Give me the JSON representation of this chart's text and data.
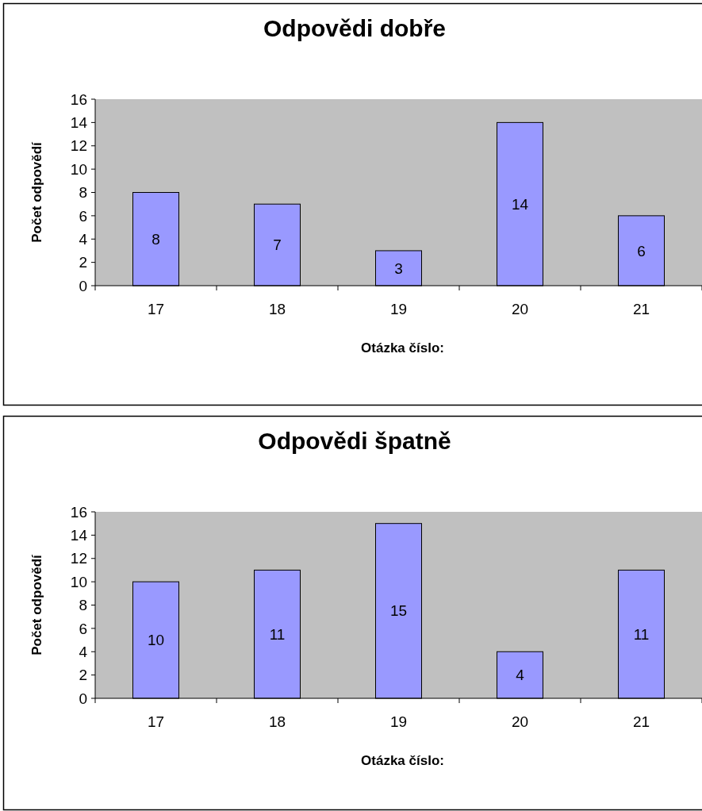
{
  "chart_data": [
    {
      "type": "bar",
      "title": "Odpovědi dobře",
      "xlabel": "Otázka číslo:",
      "ylabel": "Počet odpovědí",
      "categories": [
        "17",
        "18",
        "19",
        "20",
        "21"
      ],
      "values": [
        8,
        7,
        3,
        14,
        6
      ],
      "color": "#9999ff",
      "ylim": [
        0,
        16
      ],
      "yticks": [
        0,
        2,
        4,
        6,
        8,
        10,
        12,
        14,
        16
      ],
      "data_labels": true
    },
    {
      "type": "bar",
      "title": "Odpovědi špatně",
      "xlabel": "Otázka číslo:",
      "ylabel": "Počet odpovědí",
      "categories": [
        "17",
        "18",
        "19",
        "20",
        "21"
      ],
      "values": [
        10,
        11,
        15,
        4,
        11
      ],
      "color": "#9999ff",
      "ylim": [
        0,
        16
      ],
      "yticks": [
        0,
        2,
        4,
        6,
        8,
        10,
        12,
        14,
        16
      ],
      "data_labels": true
    }
  ]
}
